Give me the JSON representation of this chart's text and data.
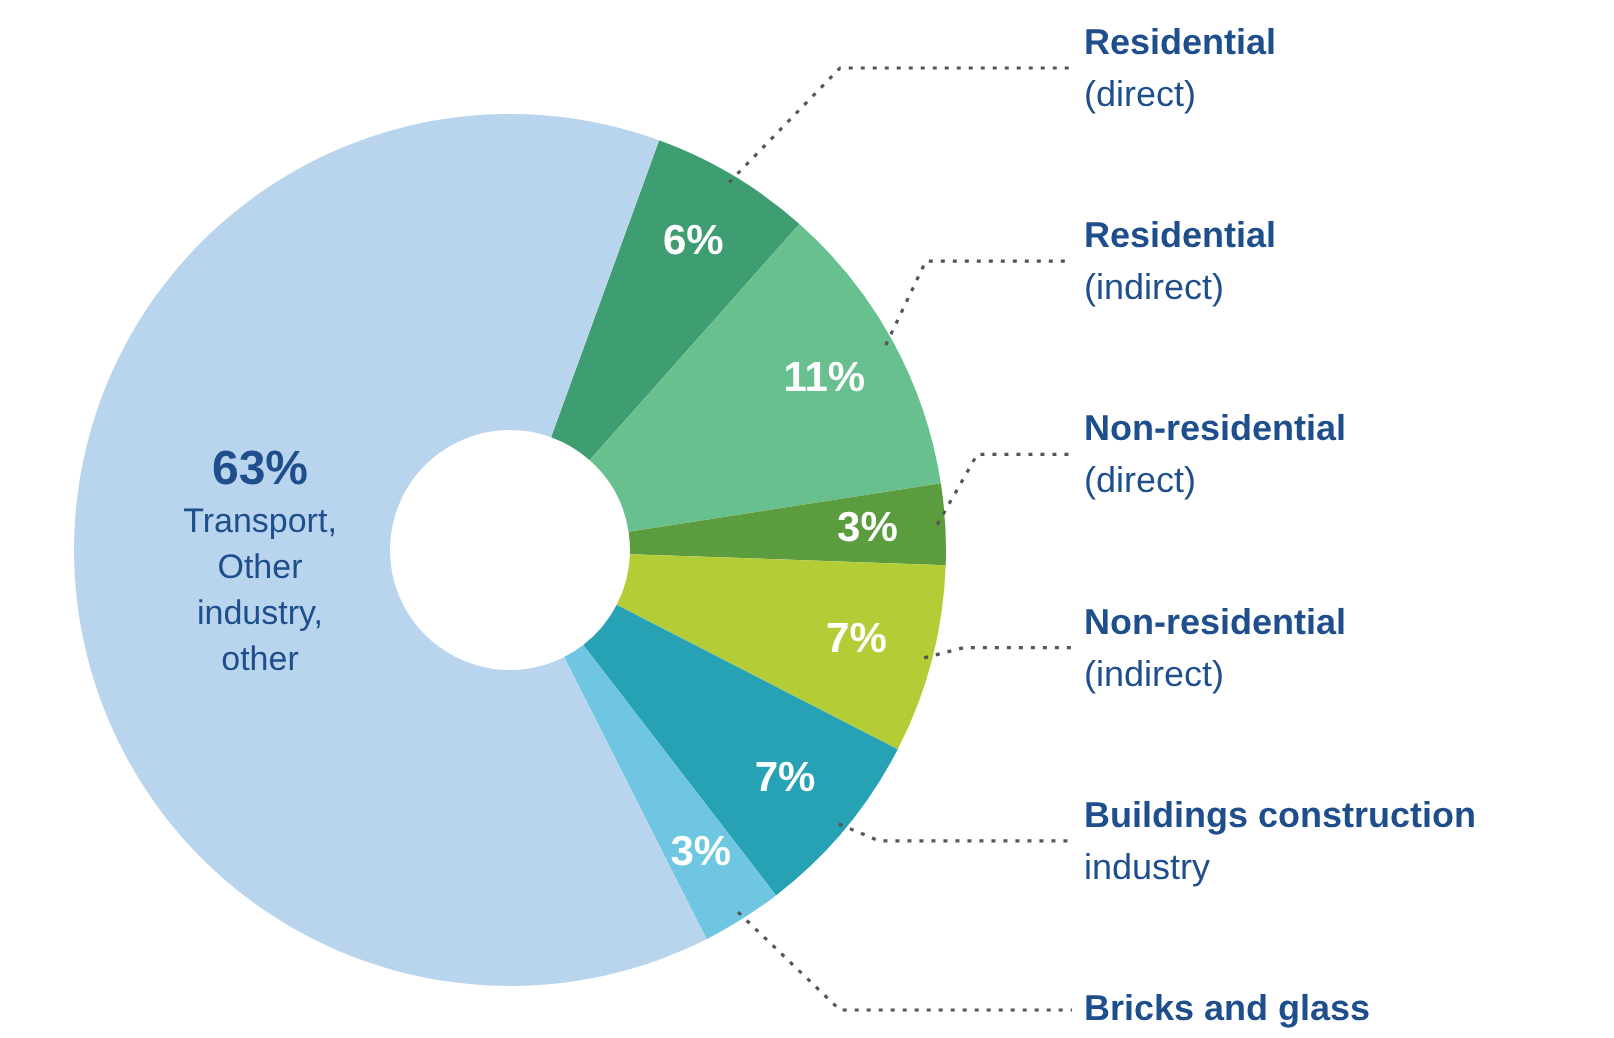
{
  "chart_data": {
    "type": "donut",
    "categories": [
      "Residential\n(direct)",
      "Residential\n(indirect)",
      "Non-residential\n(direct)",
      "Non-residential\n(indirect)",
      "Buildings construction\nindustry",
      "Bricks and glass",
      "Transport,\nOther\nindustry,\nother"
    ],
    "values": [
      6,
      11,
      3,
      7,
      7,
      3,
      63
    ],
    "value_labels": [
      "6%",
      "11%",
      "3%",
      "7%",
      "7%",
      "3%",
      "63%"
    ],
    "colors": [
      "#3f9d72",
      "#68c08f",
      "#5a9c3e",
      "#b4cd37",
      "#27a2b4",
      "#6ec6e0",
      "#b9d5ee"
    ]
  }
}
